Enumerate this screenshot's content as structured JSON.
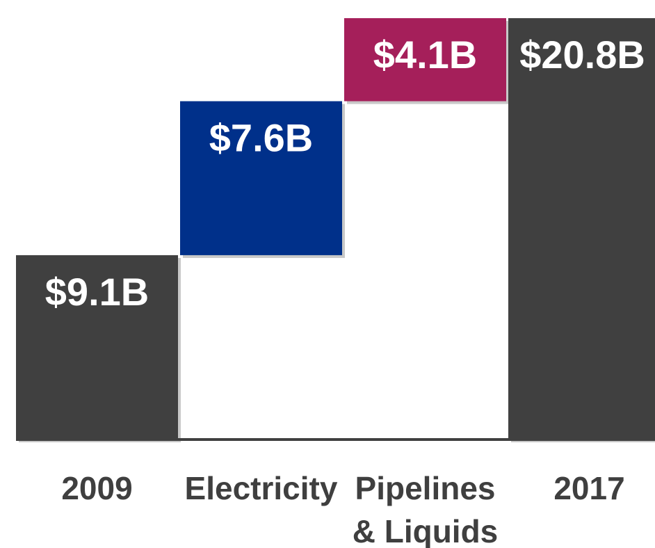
{
  "chart_data": {
    "type": "bar",
    "subtype": "waterfall",
    "categories": [
      "2009",
      "Electricity",
      "Pipelines\n& Liquids",
      "2017"
    ],
    "values": [
      9.1,
      7.6,
      4.1,
      20.8
    ],
    "bases": [
      0,
      9.1,
      16.7,
      0
    ],
    "value_labels": [
      "$9.1B",
      "$7.6B",
      "$4.1B",
      "$20.8B"
    ],
    "colors": [
      "#404040",
      "#00308a",
      "#a51f5a",
      "#404040"
    ],
    "title": "",
    "xlabel": "",
    "ylabel": "",
    "grid": false,
    "legend": "none"
  }
}
